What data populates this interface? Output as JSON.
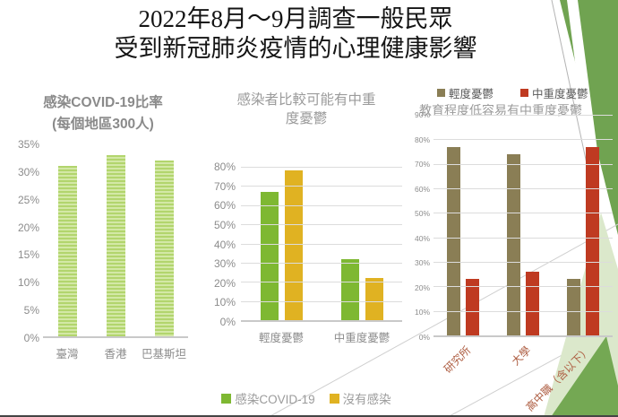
{
  "slide": {
    "title_lines": [
      "2022年8月～9月調查一般民眾",
      "受到新冠肺炎疫情的心理健康影響"
    ]
  },
  "colors": {
    "infected_green": "#7EB832",
    "not_infected_yellow": "#E0B222",
    "mild_olive": "#8A7E55",
    "severe_red": "#BF3A21",
    "striped_bar_base": "#B2D56D",
    "striped_bar_light": "#D3E8A6",
    "theme_green": "#70A351",
    "theme_green_light": "#DBE8CB",
    "theme_green_mid": "#74A853",
    "axis_text": "#8C8C8C",
    "rotated_label_text": "#AD5C40"
  },
  "chart_data": [
    {
      "name": "infection-rate",
      "type": "bar",
      "title_lines": [
        "感染COVID-19比率",
        "(每個地區300人)"
      ],
      "categories": [
        "臺灣",
        "香港",
        "巴基斯坦"
      ],
      "values": [
        31,
        33,
        32
      ],
      "unit": "%",
      "ylim": [
        0,
        35
      ],
      "yticks": [
        "35%",
        "30%",
        "25%",
        "20%",
        "15%",
        "10%",
        "5%",
        "0%"
      ],
      "grid": false,
      "legend_position": "none"
    },
    {
      "name": "depression-by-infection",
      "type": "bar",
      "title_lines": [
        "感染者比較可能有中重",
        "度憂鬱"
      ],
      "categories": [
        "輕度憂鬱",
        "中重度憂鬱"
      ],
      "series": [
        {
          "name": "感染COVID-19",
          "color": "#7EB832",
          "values": [
            67,
            32
          ]
        },
        {
          "name": "沒有感染",
          "color": "#E0B222",
          "values": [
            78,
            22
          ]
        }
      ],
      "unit": "%",
      "ylim": [
        0,
        80
      ],
      "yticks": [
        "80%",
        "70%",
        "60%",
        "50%",
        "40%",
        "30%",
        "20%",
        "10%",
        "0%"
      ],
      "grid": true,
      "legend_position": "bottom"
    },
    {
      "name": "depression-by-education",
      "type": "bar",
      "title": "教育程度低容易有中重度憂鬱",
      "categories": [
        "研究所",
        "大學",
        "高中職（含以下）"
      ],
      "series": [
        {
          "name": "輕度憂鬱",
          "color": "#8A7E55",
          "values": [
            77,
            74,
            23
          ]
        },
        {
          "name": "中重度憂鬱",
          "color": "#BF3A21",
          "values": [
            23,
            26,
            77
          ]
        }
      ],
      "unit": "%",
      "ylim": [
        0,
        90
      ],
      "yticks": [
        "90%",
        "80%",
        "70%",
        "60%",
        "50%",
        "40%",
        "30%",
        "20%",
        "10%",
        "0%"
      ],
      "grid": true,
      "legend_position": "top"
    }
  ]
}
